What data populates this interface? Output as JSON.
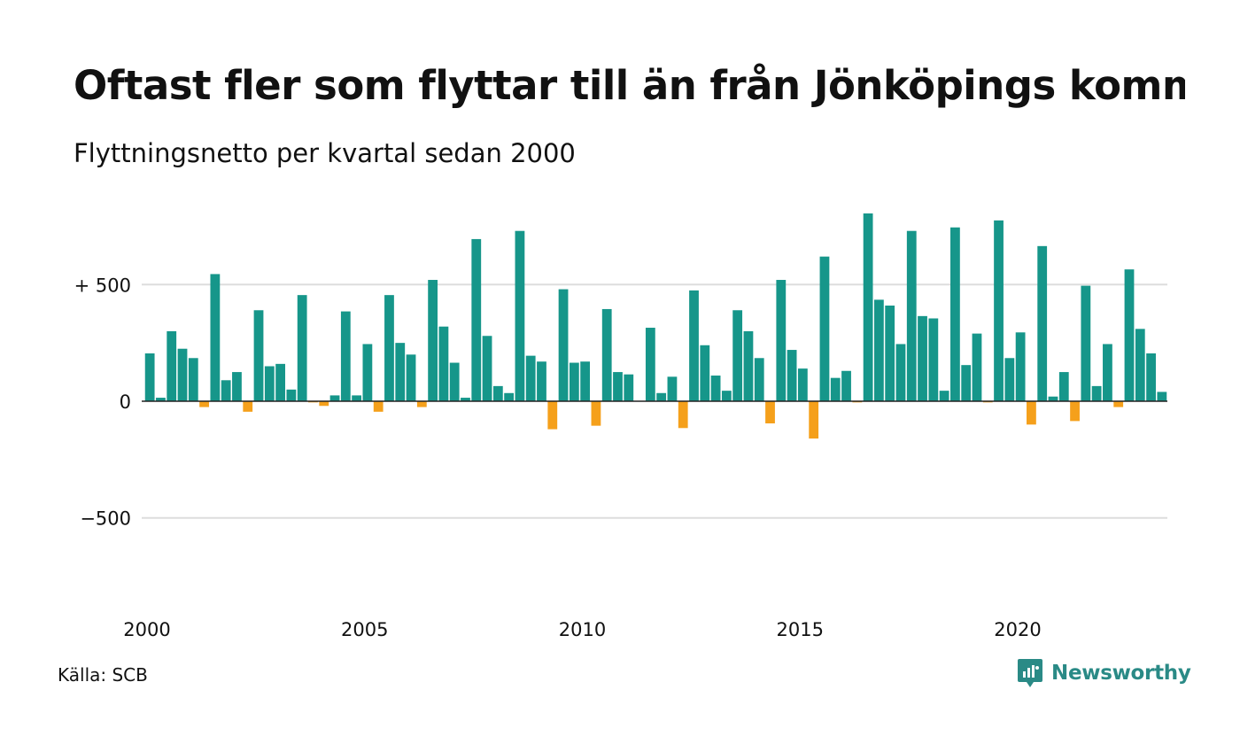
{
  "title": "Oftast fler som flyttar till än från Jönköpings kommun",
  "subtitle": "Flyttningsnetto per kvartal sedan 2000",
  "source": "Källa: SCB",
  "brand": {
    "name": "Newsworthy",
    "icon": "newsworthy-logo-icon"
  },
  "colors": {
    "positive": "#16968a",
    "negative": "#f5a01b",
    "grid": "#dddddd",
    "baseline": "#222222"
  },
  "chart_data": {
    "type": "bar",
    "x_start_year": 2000,
    "quarters_per_year": 4,
    "ylim": [
      -820,
      820
    ],
    "y_ticks": [
      {
        "value": 500,
        "label": "+ 500"
      },
      {
        "value": 0,
        "label": "0"
      },
      {
        "value": -500,
        "label": "−500"
      }
    ],
    "x_ticks": [
      {
        "year": 2000,
        "label": "2000"
      },
      {
        "year": 2005,
        "label": "2005"
      },
      {
        "year": 2010,
        "label": "2010"
      },
      {
        "year": 2015,
        "label": "2015"
      },
      {
        "year": 2020,
        "label": "2020"
      }
    ],
    "grid": true,
    "series": [
      {
        "values": [
          205,
          15,
          300,
          225,
          185,
          -25,
          545,
          90,
          125,
          -45,
          390,
          150,
          160,
          50,
          455,
          -5,
          -20,
          25,
          385,
          25,
          245,
          -45,
          455,
          250,
          200,
          -25,
          520,
          320,
          165,
          15,
          695,
          280,
          65,
          35,
          730,
          195,
          170,
          -120,
          480,
          165,
          170,
          -105,
          395,
          125,
          115,
          0,
          315,
          35,
          105,
          -115,
          475,
          240,
          110,
          45,
          390,
          300,
          185,
          -95,
          520,
          220,
          140,
          -160,
          620,
          100,
          130,
          -5,
          805,
          435,
          410,
          245,
          730,
          365,
          355,
          45,
          745,
          155,
          290,
          -5,
          775,
          185,
          295,
          -100,
          665,
          20,
          125,
          -85,
          495,
          65,
          245,
          -25,
          565,
          310,
          205,
          40
        ]
      }
    ]
  }
}
